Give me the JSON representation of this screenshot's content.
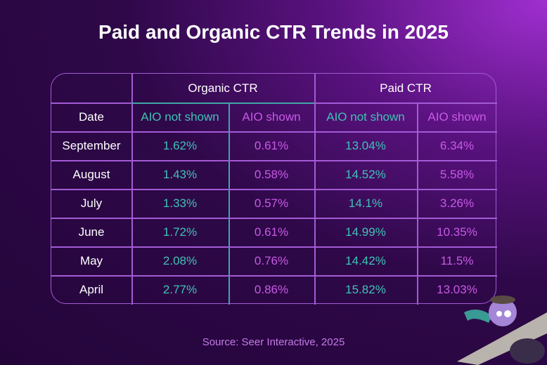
{
  "chart_data": {
    "type": "table",
    "title": "Paid and Organic CTR Trends in 2025",
    "groups": [
      "Organic CTR",
      "Paid CTR"
    ],
    "columns": [
      "Date",
      "AIO not shown",
      "AIO shown",
      "AIO not shown",
      "AIO shown"
    ],
    "rows": [
      [
        "September",
        "1.62%",
        "0.61%",
        "13.04%",
        "6.34%"
      ],
      [
        "August",
        "1.43%",
        "0.58%",
        "14.52%",
        "5.58%"
      ],
      [
        "July",
        "1.33%",
        "0.57%",
        "14.1%",
        "3.26%"
      ],
      [
        "June",
        "1.72%",
        "0.61%",
        "14.99%",
        "10.35%"
      ],
      [
        "May",
        "2.08%",
        "0.76%",
        "14.42%",
        "11.5%"
      ],
      [
        "April",
        "2.77%",
        "0.86%",
        "15.82%",
        "13.03%"
      ]
    ],
    "colors": {
      "aio_not_shown": "#3fc3b5",
      "aio_shown": "#c95ae6"
    },
    "source": "Source: Seer Interactive, 2025"
  }
}
